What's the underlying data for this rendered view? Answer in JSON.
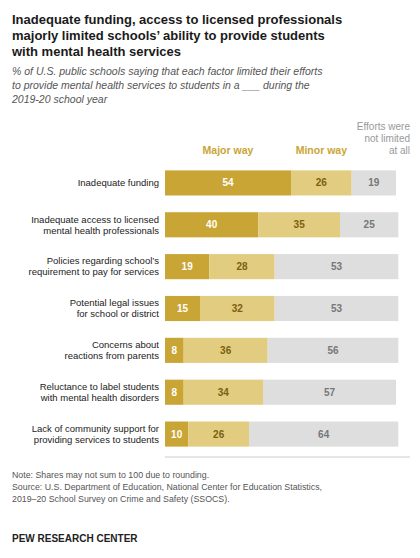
{
  "chart_data": {
    "type": "bar",
    "orientation": "horizontal",
    "stacked": true,
    "data_labels": true,
    "tick_labels": "y",
    "grid": false,
    "title": "Inadequate funding, access to licensed professionals\nmajorly limited schools’ ability to provide students\nwith mental health services",
    "subtitle": "% of U.S. public schools saying that each factor limited their efforts\nto provide mental health services to students in a ___ during the\n2019-20 school year",
    "note": "Note: Shares may not sum to 100 due to rounding.\nSource: U.S. Department of Education, National Center for Education Statistics,\n2019–20 School Survey on Crime and Safety (SSOCS).",
    "footer": "PEW RESEARCH CENTER",
    "categories": [
      "Inadequate funding",
      "Inadequate access to licensed\nmental health professionals",
      "Policies regarding school’s\nrequirement to pay for services",
      "Potential legal issues\nfor school or district",
      "Concerns about\nreactions from parents",
      "Reluctance to label students\nwith mental health disorders",
      "Lack of community support for\nproviding services to students"
    ],
    "series": [
      {
        "name": "Major way",
        "color": "#C9A535",
        "values": [
          54,
          40,
          19,
          15,
          8,
          8,
          10
        ]
      },
      {
        "name": "Minor way",
        "color": "#E2CC80",
        "values": [
          26,
          35,
          28,
          32,
          36,
          34,
          26
        ]
      },
      {
        "name": "Efforts were\nnot limited\nat all",
        "color": "#DEDEDE",
        "values": [
          19,
          25,
          53,
          53,
          56,
          57,
          64
        ]
      }
    ],
    "xlim": [
      0,
      105
    ]
  }
}
